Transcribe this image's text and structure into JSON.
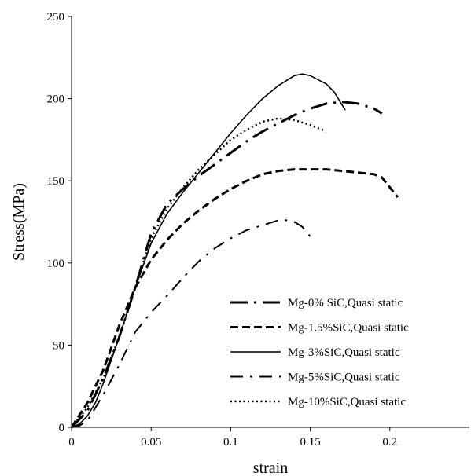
{
  "chart_data": {
    "type": "line",
    "title": "",
    "xlabel": "strain",
    "ylabel": "Stress(MPa)",
    "xlim": [
      0,
      0.25
    ],
    "ylim": [
      0,
      250
    ],
    "x_ticks": [
      "0",
      "0.05",
      "0.1",
      "0.15",
      "0.2"
    ],
    "y_ticks": [
      "0",
      "50",
      "100",
      "150",
      "200",
      "250"
    ],
    "grid": false,
    "legend_position": "bottom-right",
    "series": [
      {
        "name": "Mg-0% SiC,Quasi static",
        "dash": "long-dash-dot",
        "points": [
          [
            0.0,
            0
          ],
          [
            0.01,
            10
          ],
          [
            0.02,
            30
          ],
          [
            0.03,
            55
          ],
          [
            0.04,
            85
          ],
          [
            0.05,
            118
          ],
          [
            0.06,
            136
          ],
          [
            0.07,
            145
          ],
          [
            0.08,
            153
          ],
          [
            0.09,
            160
          ],
          [
            0.1,
            167
          ],
          [
            0.11,
            174
          ],
          [
            0.12,
            180
          ],
          [
            0.13,
            185
          ],
          [
            0.14,
            190
          ],
          [
            0.15,
            194
          ],
          [
            0.16,
            197
          ],
          [
            0.17,
            198
          ],
          [
            0.18,
            197
          ],
          [
            0.19,
            194
          ],
          [
            0.195,
            191
          ]
        ]
      },
      {
        "name": "Mg-1.5%SiC,Quasi static",
        "dash": "dash",
        "points": [
          [
            0.0,
            0
          ],
          [
            0.01,
            15
          ],
          [
            0.02,
            35
          ],
          [
            0.03,
            62
          ],
          [
            0.04,
            85
          ],
          [
            0.05,
            102
          ],
          [
            0.06,
            114
          ],
          [
            0.07,
            124
          ],
          [
            0.08,
            132
          ],
          [
            0.09,
            139
          ],
          [
            0.1,
            145
          ],
          [
            0.11,
            150
          ],
          [
            0.12,
            154
          ],
          [
            0.13,
            156
          ],
          [
            0.14,
            157
          ],
          [
            0.15,
            157
          ],
          [
            0.16,
            157
          ],
          [
            0.17,
            156
          ],
          [
            0.18,
            155
          ],
          [
            0.19,
            154
          ],
          [
            0.195,
            152
          ],
          [
            0.2,
            146
          ],
          [
            0.205,
            140
          ]
        ]
      },
      {
        "name": "Mg-3%SiC,Quasi static",
        "dash": "solid",
        "points": [
          [
            0.0,
            0
          ],
          [
            0.005,
            2
          ],
          [
            0.01,
            7
          ],
          [
            0.015,
            15
          ],
          [
            0.02,
            27
          ],
          [
            0.03,
            55
          ],
          [
            0.04,
            85
          ],
          [
            0.05,
            112
          ],
          [
            0.06,
            130
          ],
          [
            0.07,
            143
          ],
          [
            0.08,
            155
          ],
          [
            0.09,
            167
          ],
          [
            0.1,
            179
          ],
          [
            0.11,
            190
          ],
          [
            0.12,
            200
          ],
          [
            0.13,
            208
          ],
          [
            0.14,
            214
          ],
          [
            0.145,
            215
          ],
          [
            0.15,
            214
          ],
          [
            0.16,
            209
          ],
          [
            0.165,
            204
          ],
          [
            0.172,
            193
          ]
        ]
      },
      {
        "name": "Mg-5%SiC,Quasi static",
        "dash": "dash-dot",
        "points": [
          [
            0.0,
            0
          ],
          [
            0.005,
            1
          ],
          [
            0.01,
            4
          ],
          [
            0.02,
            20
          ],
          [
            0.03,
            38
          ],
          [
            0.04,
            58
          ],
          [
            0.05,
            70
          ],
          [
            0.06,
            80
          ],
          [
            0.07,
            91
          ],
          [
            0.08,
            101
          ],
          [
            0.09,
            109
          ],
          [
            0.1,
            115
          ],
          [
            0.11,
            120
          ],
          [
            0.12,
            123
          ],
          [
            0.13,
            126
          ],
          [
            0.135,
            126
          ],
          [
            0.14,
            125
          ],
          [
            0.145,
            122
          ],
          [
            0.15,
            116
          ]
        ]
      },
      {
        "name": "Mg-10%SiC,Quasi static",
        "dash": "dot",
        "points": [
          [
            0.0,
            0
          ],
          [
            0.01,
            12
          ],
          [
            0.02,
            30
          ],
          [
            0.03,
            55
          ],
          [
            0.04,
            85
          ],
          [
            0.05,
            115
          ],
          [
            0.06,
            133
          ],
          [
            0.07,
            146
          ],
          [
            0.08,
            157
          ],
          [
            0.09,
            166
          ],
          [
            0.1,
            175
          ],
          [
            0.11,
            181
          ],
          [
            0.12,
            186
          ],
          [
            0.13,
            188
          ],
          [
            0.14,
            187
          ],
          [
            0.15,
            184
          ],
          [
            0.16,
            180
          ]
        ]
      }
    ]
  }
}
